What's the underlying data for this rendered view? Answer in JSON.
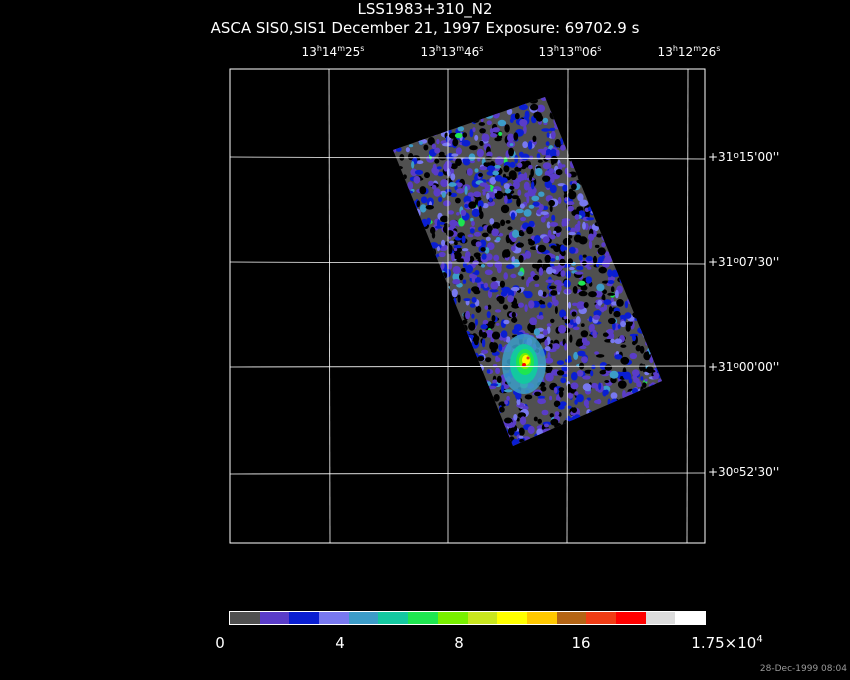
{
  "header": {
    "title": "LSS1983+310_N2",
    "subtitle": "ASCA SIS0,SIS1 December 21, 1997 Exposure: 69702.9 s"
  },
  "ra_labels": [
    {
      "h": "13",
      "m": "14",
      "s": "25"
    },
    {
      "h": "13",
      "m": "13",
      "s": "46"
    },
    {
      "h": "13",
      "m": "13",
      "s": "06"
    },
    {
      "h": "13",
      "m": "12",
      "s": "26"
    }
  ],
  "dec_labels": [
    {
      "deg": "+31",
      "min": "15",
      "sec": "00"
    },
    {
      "deg": "+31",
      "min": "07",
      "sec": "30"
    },
    {
      "deg": "+31",
      "min": "00",
      "sec": "00"
    },
    {
      "deg": "+30",
      "min": "52",
      "sec": "30"
    }
  ],
  "colorbar": {
    "colors": [
      "#505050",
      "#5a3cc8",
      "#0a1ed2",
      "#7878f0",
      "#3c9cc8",
      "#14c8a0",
      "#1ee650",
      "#78f000",
      "#c8e61e",
      "#ffff00",
      "#ffc800",
      "#b46414",
      "#f03c14",
      "#ff0000",
      "#dcdcdc",
      "#ffffff"
    ],
    "labels": {
      "l0": "0",
      "l4": "4",
      "l8": "8",
      "l16": "16",
      "max_mant": "1.75×10",
      "max_exp": "4"
    }
  },
  "timestamp": "28-Dec-1999 08:04"
}
